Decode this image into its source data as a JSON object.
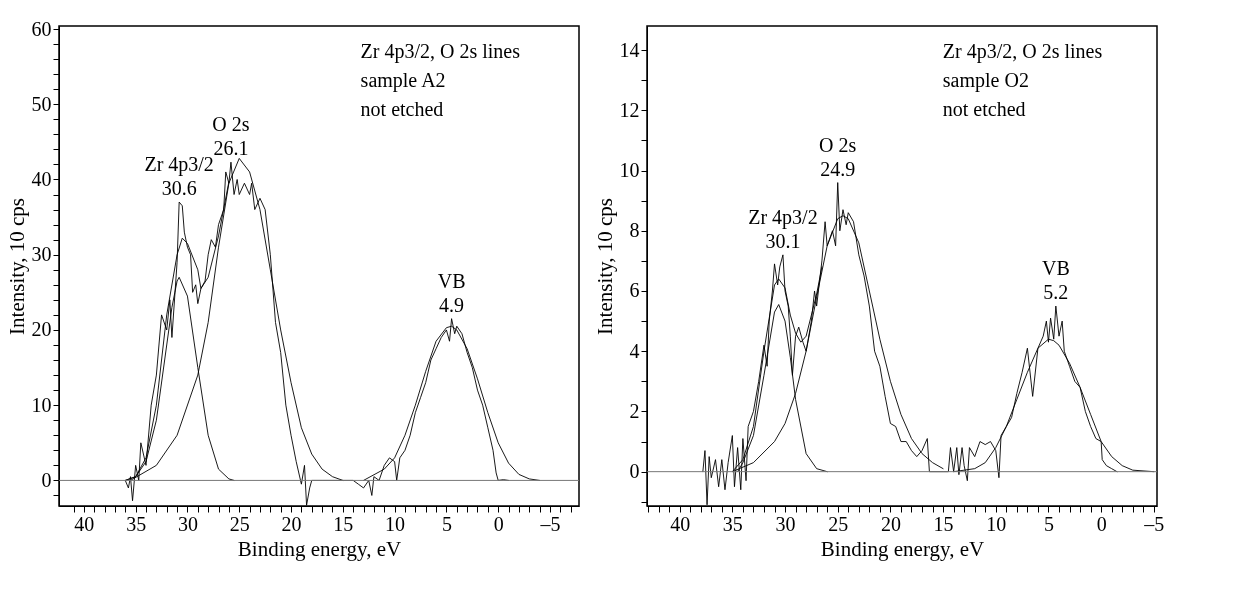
{
  "chart_data": [
    {
      "type": "line",
      "xlabel": "Binding energy, eV",
      "ylabel": "Intensity, 10 cps",
      "grid": false,
      "marker": "none",
      "line_style": "solid",
      "xlim": [
        42.4,
        -7.8
      ],
      "ylim": [
        -3.4,
        60.4
      ],
      "xticks": [
        {
          "value": 41,
          "label": null
        },
        40,
        {
          "value": 39,
          "label": null
        },
        {
          "value": 38,
          "label": null
        },
        {
          "value": 37,
          "label": null
        },
        {
          "value": 36,
          "label": null
        },
        35,
        {
          "value": 34,
          "label": null
        },
        {
          "value": 33,
          "label": null
        },
        {
          "value": 32,
          "label": null
        },
        {
          "value": 31,
          "label": null
        },
        30,
        {
          "value": 29,
          "label": null
        },
        {
          "value": 28,
          "label": null
        },
        {
          "value": 27,
          "label": null
        },
        {
          "value": 26,
          "label": null
        },
        25,
        {
          "value": 24,
          "label": null
        },
        {
          "value": 23,
          "label": null
        },
        {
          "value": 22,
          "label": null
        },
        {
          "value": 21,
          "label": null
        },
        20,
        {
          "value": 19,
          "label": null
        },
        {
          "value": 18,
          "label": null
        },
        {
          "value": 17,
          "label": null
        },
        {
          "value": 16,
          "label": null
        },
        15,
        {
          "value": 14,
          "label": null
        },
        {
          "value": 13,
          "label": null
        },
        {
          "value": 12,
          "label": null
        },
        {
          "value": 11,
          "label": null
        },
        10,
        {
          "value": 9,
          "label": null
        },
        {
          "value": 8,
          "label": null
        },
        {
          "value": 7,
          "label": null
        },
        {
          "value": 6,
          "label": null
        },
        5,
        {
          "value": 4,
          "label": null
        },
        {
          "value": 3,
          "label": null
        },
        {
          "value": 2,
          "label": null
        },
        {
          "value": 1,
          "label": null
        },
        0,
        {
          "value": -1,
          "label": null
        },
        {
          "value": -2,
          "label": null
        },
        {
          "value": -3,
          "label": null
        },
        {
          "value": -4,
          "label": null
        },
        {
          "value": -5,
          "label": "–5"
        },
        {
          "value": -6,
          "label": null
        },
        {
          "value": -7,
          "label": null
        }
      ],
      "yticks": [
        {
          "value": -2,
          "label": null
        },
        0,
        {
          "value": 2,
          "label": null
        },
        {
          "value": 4,
          "label": null
        },
        {
          "value": 6,
          "label": null
        },
        {
          "value": 8,
          "label": null
        },
        10,
        {
          "value": 12,
          "label": null
        },
        {
          "value": 14,
          "label": null
        },
        {
          "value": 16,
          "label": null
        },
        {
          "value": 18,
          "label": null
        },
        20,
        {
          "value": 22,
          "label": null
        },
        {
          "value": 24,
          "label": null
        },
        {
          "value": 26,
          "label": null
        },
        {
          "value": 28,
          "label": null
        },
        30,
        {
          "value": 32,
          "label": null
        },
        {
          "value": 34,
          "label": null
        },
        {
          "value": 36,
          "label": null
        },
        {
          "value": 38,
          "label": null
        },
        40,
        {
          "value": 42,
          "label": null
        },
        {
          "value": 44,
          "label": null
        },
        {
          "value": 46,
          "label": null
        },
        {
          "value": 48,
          "label": null
        },
        50,
        {
          "value": 52,
          "label": null
        },
        {
          "value": 54,
          "label": null
        },
        {
          "value": 56,
          "label": null
        },
        {
          "value": 58,
          "label": null
        },
        60
      ],
      "ref_lines": [
        {
          "axis": "y",
          "value": 0,
          "color": "#777777"
        }
      ],
      "annotations": [
        "Zr 4p3/2, O 2s lines",
        "sample A2",
        "not etched",
        {
          "text": "Zr 4p3/2\n30.6",
          "x": 30.8,
          "y": 37
        },
        {
          "text": "O 2s\n26.1",
          "x": 25.8,
          "y": 42.3
        },
        {
          "text": "VB\n4.9",
          "x": 4.5,
          "y": 21.5
        }
      ],
      "series": [
        {
          "color": "#000000",
          "x": [
            36,
            35.7,
            35.5,
            35.3,
            35,
            34.7,
            34.5,
            34,
            33.5,
            33,
            32.5,
            32,
            31.7,
            31.5,
            31.2,
            31,
            30.8,
            30.5,
            30.3,
            30,
            29.7,
            29.5,
            29.2,
            29,
            28.7,
            28.3,
            28,
            27.7,
            27.3,
            27,
            26.5,
            26.3,
            26,
            25.8,
            25.5,
            25.2,
            25,
            24.5,
            24,
            23.8,
            23.5,
            23,
            22.5,
            22,
            21.5,
            21,
            20.5,
            20,
            19.5,
            19,
            18.7,
            18.5,
            18.2,
            18,
            17,
            15,
            14,
            13.5,
            13,
            12.5,
            12.2,
            12,
            11.5,
            11,
            10.5,
            10,
            9.8,
            9.5,
            9,
            8.5,
            8,
            7.5,
            7,
            6.5,
            6,
            5.5,
            5,
            4.7,
            4.5,
            4.2,
            4,
            3.5,
            3,
            2.5,
            2,
            1.5,
            1,
            0.5,
            0.2,
            0,
            -0.5,
            -1
          ],
          "values": [
            0,
            -1,
            0.5,
            -2.7,
            2,
            0,
            5,
            2,
            10,
            14,
            22,
            20,
            24,
            19,
            25,
            29,
            37,
            36.5,
            33,
            31,
            30,
            25,
            26,
            23.5,
            25.5,
            26.5,
            30,
            32,
            31,
            34,
            36,
            41,
            39.5,
            42.3,
            38,
            40,
            38,
            39.5,
            38,
            39.5,
            36,
            37.5,
            36,
            30,
            21,
            17,
            10,
            6,
            2.5,
            -0.5,
            2,
            -3.3,
            -1,
            0,
            0,
            0,
            0,
            -0.5,
            -1,
            0,
            -2,
            0.5,
            0,
            2,
            3,
            2.5,
            0,
            3,
            4,
            6,
            9,
            11,
            13,
            16,
            17.5,
            19,
            20,
            18.5,
            21.5,
            19.5,
            20.5,
            19.5,
            17,
            15,
            12,
            10,
            7,
            4,
            1,
            0,
            0.1,
            0
          ]
        },
        {
          "color": "#000000",
          "x": [
            36,
            35,
            34,
            33,
            32,
            31.5,
            31,
            30.8,
            30,
            29,
            28,
            27,
            26,
            25.5
          ],
          "values": [
            0,
            0.5,
            2.5,
            8,
            18,
            23,
            26.5,
            27,
            24.5,
            15,
            6,
            1.5,
            0.2,
            0
          ]
        },
        {
          "color": "#000000",
          "x": [
            35.5,
            33,
            31,
            29,
            28,
            27,
            26,
            25,
            24,
            23,
            22,
            21,
            20,
            19,
            18,
            17,
            16,
            15
          ],
          "values": [
            0,
            2,
            6,
            14,
            21,
            31,
            39.5,
            42.8,
            41,
            36,
            28,
            20,
            13,
            7,
            3.5,
            1.5,
            0.5,
            0
          ]
        },
        {
          "color": "#000000",
          "x": [
            36,
            35,
            34,
            33,
            32,
            31,
            30.5,
            30,
            29,
            28.7,
            28,
            27,
            26
          ],
          "values": [
            0,
            0.5,
            3,
            10,
            22,
            30,
            32.2,
            31.5,
            28,
            25.5,
            27,
            32.5,
            39.7
          ]
        },
        {
          "color": "#000000",
          "x": [
            13,
            11,
            10,
            9,
            8,
            7,
            6,
            5,
            4.5,
            4,
            3,
            2,
            1,
            0,
            -1,
            -2,
            -3,
            -4
          ],
          "values": [
            0,
            1.5,
            3,
            6,
            10,
            14.5,
            18.5,
            20.3,
            20.5,
            20,
            17.5,
            13.5,
            9,
            5,
            2.3,
            0.8,
            0.2,
            0
          ]
        }
      ]
    },
    {
      "type": "line",
      "xlabel": "Binding energy, eV",
      "ylabel": "Intensity, 10 cps",
      "grid": false,
      "marker": "none",
      "line_style": "solid",
      "xlim": [
        43.1,
        -5.3
      ],
      "ylim": [
        -1.14,
        14.8
      ],
      "xticks": [
        {
          "value": 43,
          "label": null
        },
        {
          "value": 42,
          "label": null
        },
        {
          "value": 41,
          "label": null
        },
        40,
        {
          "value": 39,
          "label": null
        },
        {
          "value": 38,
          "label": null
        },
        {
          "value": 37,
          "label": null
        },
        {
          "value": 36,
          "label": null
        },
        35,
        {
          "value": 34,
          "label": null
        },
        {
          "value": 33,
          "label": null
        },
        {
          "value": 32,
          "label": null
        },
        {
          "value": 31,
          "label": null
        },
        30,
        {
          "value": 29,
          "label": null
        },
        {
          "value": 28,
          "label": null
        },
        {
          "value": 27,
          "label": null
        },
        {
          "value": 26,
          "label": null
        },
        25,
        {
          "value": 24,
          "label": null
        },
        {
          "value": 23,
          "label": null
        },
        {
          "value": 22,
          "label": null
        },
        {
          "value": 21,
          "label": null
        },
        20,
        {
          "value": 19,
          "label": null
        },
        {
          "value": 18,
          "label": null
        },
        {
          "value": 17,
          "label": null
        },
        {
          "value": 16,
          "label": null
        },
        15,
        {
          "value": 14,
          "label": null
        },
        {
          "value": 13,
          "label": null
        },
        {
          "value": 12,
          "label": null
        },
        {
          "value": 11,
          "label": null
        },
        10,
        {
          "value": 9,
          "label": null
        },
        {
          "value": 8,
          "label": null
        },
        {
          "value": 7,
          "label": null
        },
        {
          "value": 6,
          "label": null
        },
        5,
        {
          "value": 4,
          "label": null
        },
        {
          "value": 3,
          "label": null
        },
        {
          "value": 2,
          "label": null
        },
        {
          "value": 1,
          "label": null
        },
        0,
        {
          "value": -1,
          "label": null
        },
        {
          "value": -2,
          "label": null
        },
        {
          "value": -3,
          "label": null
        },
        {
          "value": -4,
          "label": null
        },
        {
          "value": -5,
          "label": "–5"
        }
      ],
      "yticks": [
        {
          "value": -1,
          "label": null
        },
        0,
        {
          "value": 1,
          "label": null
        },
        2,
        {
          "value": 3,
          "label": null
        },
        4,
        {
          "value": 5,
          "label": null
        },
        6,
        {
          "value": 7,
          "label": null
        },
        8,
        {
          "value": 9,
          "label": null
        },
        10,
        {
          "value": 11,
          "label": null
        },
        12,
        {
          "value": 13,
          "label": null
        },
        14
      ],
      "ref_lines": [
        {
          "axis": "y",
          "value": 0,
          "color": "#777777"
        }
      ],
      "annotations": [
        "Zr 4p3/2, O 2s lines",
        "sample O2",
        "not etched",
        {
          "text": "Zr 4p3/2\n30.1",
          "x": 30.2,
          "y": 7.2
        },
        {
          "text": "O 2s\n24.9",
          "x": 25,
          "y": 9.6
        },
        {
          "text": "VB\n5.2",
          "x": 4.3,
          "y": 5.5
        }
      ],
      "series": [
        {
          "color": "#000000",
          "x": [
            37.8,
            37.6,
            37.4,
            37.2,
            37,
            36.6,
            36.3,
            36,
            35.7,
            35.4,
            35,
            34.8,
            34.5,
            34.2,
            34,
            33.7,
            33.5,
            33,
            32.5,
            32,
            31.7,
            31.5,
            31.2,
            31,
            30.7,
            30.5,
            30.2,
            30,
            29.7,
            29.5,
            29.3,
            29,
            28.7,
            28.3,
            28,
            27.5,
            27.2,
            27,
            26.5,
            26.2,
            26,
            25.5,
            25.2,
            25,
            24.8,
            24.5,
            24.2,
            24,
            23.5,
            23,
            22.5,
            22,
            21.5,
            21,
            20.5,
            20,
            19.5,
            19,
            18.5,
            18,
            17.5,
            17,
            16.5,
            16.3,
            15,
            14.5,
            14.3,
            14,
            13.7,
            13.5,
            13.2,
            13,
            12.7,
            12.5,
            12,
            11.5,
            11,
            10.5,
            10,
            9.7,
            9.5,
            9,
            8.5,
            8,
            7.5,
            7,
            6.5,
            6,
            5.5,
            5.2,
            5,
            4.8,
            4.5,
            4.3,
            4,
            3.7,
            3.5,
            3,
            2.5,
            2,
            1.5,
            1,
            0.5,
            0,
            -0.1,
            -0.5,
            -1,
            -1.5
          ],
          "values": [
            0,
            0.7,
            -1.1,
            0.5,
            -0.2,
            0.4,
            -0.5,
            0.4,
            -0.6,
            0.3,
            1.2,
            -0.5,
            0.8,
            -0.6,
            1.1,
            -0.3,
            1.5,
            2,
            3,
            4.2,
            3.5,
            5,
            6,
            6.9,
            6.2,
            6.8,
            7.2,
            6,
            5.5,
            4.5,
            3.2,
            4.5,
            4.8,
            4.3,
            4,
            5,
            6,
            5.5,
            7,
            8.3,
            7.5,
            8,
            7.5,
            9.6,
            8,
            8.7,
            8.2,
            8.6,
            8.3,
            7.2,
            6.5,
            5.5,
            4,
            3.5,
            2.5,
            1.6,
            1.5,
            1,
            1,
            0.7,
            0.5,
            0.7,
            1.1,
            0,
            0,
            0,
            0.8,
            0,
            0.8,
            -0.1,
            0.8,
            0.2,
            -0.3,
            0.8,
            0.5,
            1,
            0.9,
            1,
            0.7,
            -0.2,
            1.2,
            1.5,
            1.8,
            2.6,
            3.3,
            4.1,
            2.5,
            4.1,
            4.5,
            5,
            4.3,
            5.1,
            4.4,
            5.5,
            4.5,
            5,
            4,
            3.5,
            3,
            2.8,
            2,
            1.5,
            1.1,
            1,
            0.4,
            0.2,
            0.1,
            0
          ]
        },
        {
          "color": "#000000",
          "x": [
            34.5,
            34,
            33,
            32,
            31,
            30.6,
            30,
            29.5,
            29,
            28,
            27,
            26
          ],
          "values": [
            0,
            0.3,
            1.2,
            3.2,
            5.3,
            5.55,
            5,
            3.8,
            2.4,
            0.6,
            0.1,
            0
          ]
        },
        {
          "color": "#000000",
          "x": [
            35,
            33,
            31,
            30,
            29,
            28,
            27,
            26,
            25,
            24.5,
            24,
            23,
            22,
            21,
            20,
            19,
            18,
            17,
            16,
            15
          ],
          "values": [
            0,
            0.3,
            1,
            1.6,
            2.6,
            4,
            5.8,
            7.5,
            8.4,
            8.5,
            8.4,
            7.6,
            6,
            4.4,
            3,
            1.9,
            1.1,
            0.6,
            0.3,
            0.1
          ]
        },
        {
          "color": "#000000",
          "x": [
            35,
            34,
            33,
            32,
            31,
            30.6,
            30,
            29.5,
            29,
            28.5,
            28,
            27,
            26.5
          ],
          "values": [
            0,
            0.4,
            1.5,
            4,
            6.2,
            6.4,
            6.1,
            5.2,
            4.6,
            4.3,
            4.5,
            5.9,
            6.8
          ]
        },
        {
          "color": "#000000",
          "x": [
            14,
            12,
            11,
            10,
            9,
            8,
            7,
            6,
            5,
            4.5,
            4,
            3,
            2,
            1,
            0,
            -1,
            -2,
            -3,
            -5
          ],
          "values": [
            0,
            0.1,
            0.3,
            0.8,
            1.5,
            2.4,
            3.3,
            4.1,
            4.4,
            4.35,
            4.2,
            3.6,
            2.8,
            1.9,
            1,
            0.5,
            0.2,
            0.05,
            0
          ]
        }
      ]
    }
  ]
}
